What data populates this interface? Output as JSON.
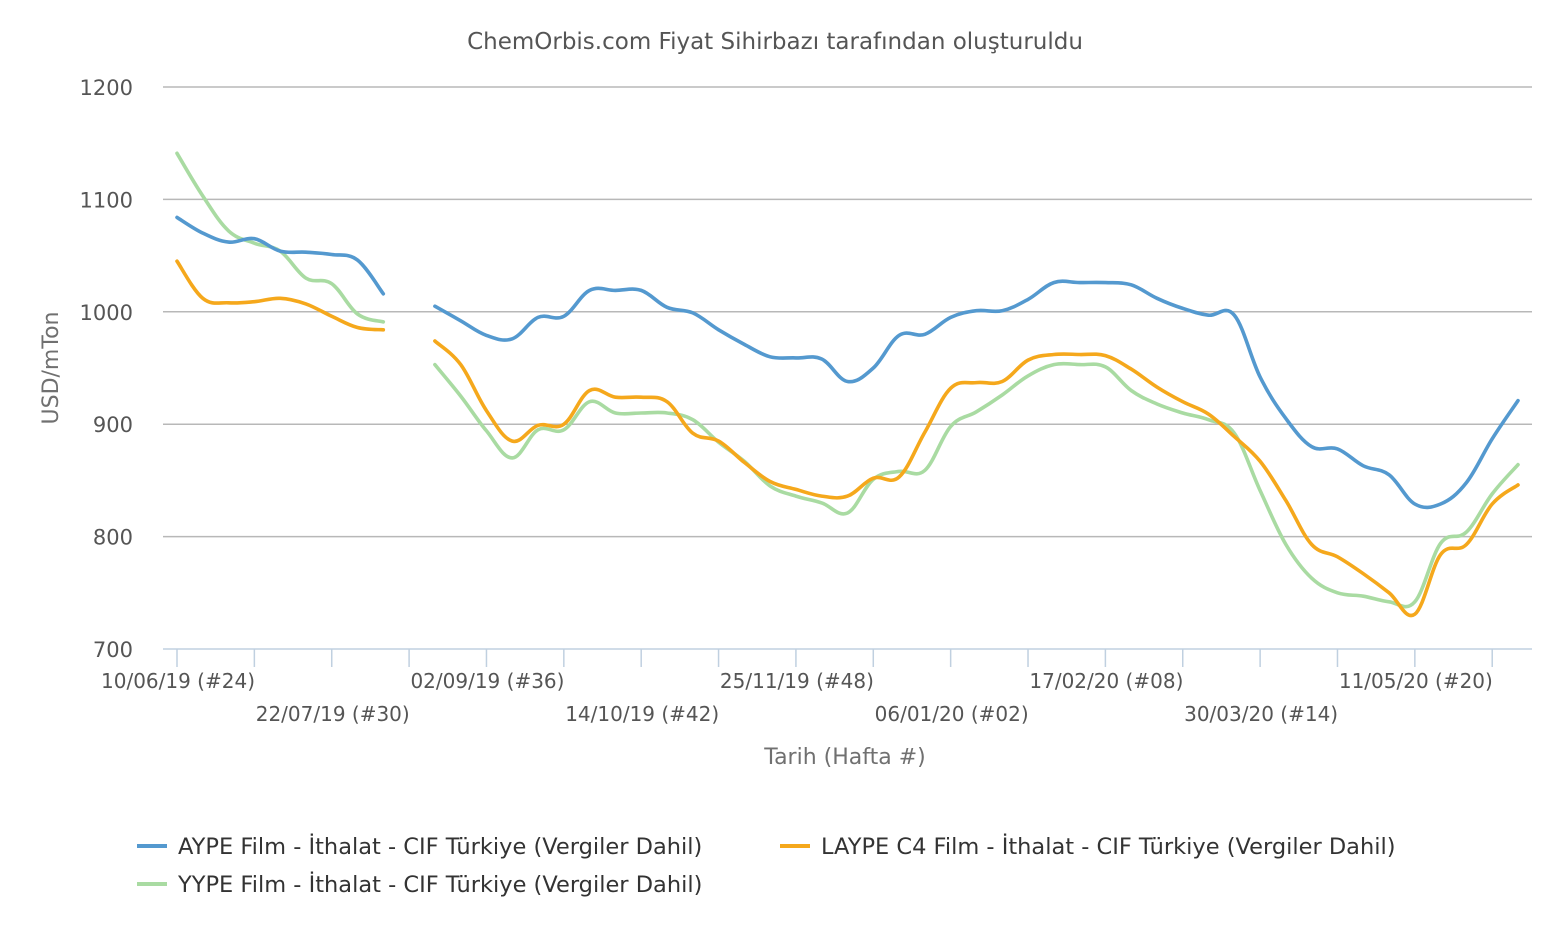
{
  "chart_data": {
    "type": "line",
    "title": "ChemOrbis.com Fiyat Sihirbazı tarafından oluşturuldu",
    "xlabel": "Tarih (Hafta #)",
    "ylabel": "USD/mTon",
    "ylim": [
      700,
      1200
    ],
    "yticks": [
      "700",
      "800",
      "900",
      "1000",
      "1100",
      "1200"
    ],
    "grid": true,
    "legend_position": "bottom",
    "week_count": 52,
    "xtick_labels": [
      {
        "week": 0,
        "label": "10/06/19 (#24)",
        "row": 1
      },
      {
        "week": 6,
        "label": "22/07/19 (#30)",
        "row": 2
      },
      {
        "week": 12,
        "label": "02/09/19 (#36)",
        "row": 1
      },
      {
        "week": 18,
        "label": "14/10/19 (#42)",
        "row": 2
      },
      {
        "week": 24,
        "label": "25/11/19 (#48)",
        "row": 1
      },
      {
        "week": 30,
        "label": "06/01/20 (#02)",
        "row": 2
      },
      {
        "week": 36,
        "label": "17/02/20 (#08)",
        "row": 1
      },
      {
        "week": 42,
        "label": "30/03/20 (#14)",
        "row": 2
      },
      {
        "week": 48,
        "label": "11/05/20 (#20)",
        "row": 1
      }
    ],
    "series": [
      {
        "name": "AYPE Film - İthalat - CIF Türkiye (Vergiler Dahil)",
        "color": "#5499cf",
        "values": [
          1084,
          1070,
          1062,
          1065,
          1054,
          1053,
          1051,
          1046,
          1016,
          null,
          1005,
          992,
          979,
          976,
          995,
          996,
          1019,
          1019,
          1019,
          1004,
          999,
          984,
          971,
          960,
          959,
          958,
          938,
          950,
          979,
          980,
          995,
          1001,
          1001,
          1011,
          1026,
          1026,
          1026,
          1024,
          1012,
          1003,
          997,
          997,
          942,
          905,
          880,
          878,
          863,
          855,
          829,
          829,
          848,
          887,
          921
        ]
      },
      {
        "name": "LAYPE C4 Film - İthalat - CIF Türkiye (Vergiler Dahil)",
        "color": "#f5a81c",
        "values": [
          1045,
          1012,
          1008,
          1009,
          1012,
          1007,
          996,
          986,
          984,
          null,
          974,
          953,
          912,
          885,
          899,
          900,
          930,
          924,
          924,
          920,
          892,
          885,
          866,
          849,
          842,
          836,
          836,
          852,
          853,
          893,
          932,
          937,
          938,
          957,
          962,
          962,
          961,
          949,
          933,
          920,
          909,
          889,
          867,
          832,
          793,
          782,
          767,
          750,
          731,
          784,
          793,
          829,
          846
        ]
      },
      {
        "name": "YYPE Film - İthalat - CIF Türkiye (Vergiler Dahil)",
        "color": "#a9dba2",
        "values": [
          1141,
          1103,
          1072,
          1061,
          1054,
          1030,
          1025,
          998,
          991,
          null,
          953,
          925,
          894,
          870,
          895,
          895,
          920,
          910,
          910,
          910,
          904,
          884,
          867,
          845,
          836,
          830,
          821,
          851,
          858,
          859,
          898,
          911,
          926,
          943,
          953,
          953,
          951,
          930,
          918,
          910,
          904,
          892,
          841,
          793,
          763,
          750,
          747,
          742,
          742,
          794,
          804,
          838,
          864
        ]
      }
    ]
  }
}
